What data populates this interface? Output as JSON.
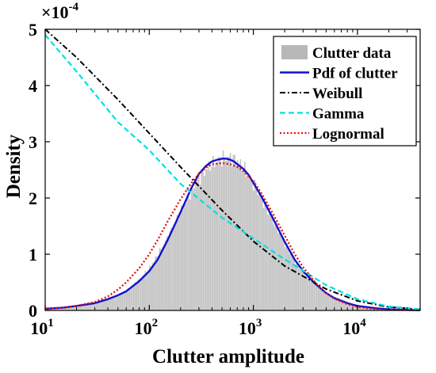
{
  "chart_data": {
    "type": "line",
    "title": "",
    "xlabel": "Clutter amplitude",
    "ylabel": "Density",
    "x_scale": "log",
    "xlim": [
      10,
      40000
    ],
    "ylim": [
      0,
      0.0005
    ],
    "y_multiplier_label": "×10",
    "y_multiplier_exponent": "-4",
    "x_ticks": [
      {
        "value": 10,
        "base": "10",
        "exp": "1"
      },
      {
        "value": 100,
        "base": "10",
        "exp": "2"
      },
      {
        "value": 1000,
        "base": "10",
        "exp": "3"
      },
      {
        "value": 10000,
        "base": "10",
        "exp": "4"
      }
    ],
    "y_ticks": [
      {
        "value": 0,
        "label": "0"
      },
      {
        "value": 0.0001,
        "label": "1"
      },
      {
        "value": 0.0002,
        "label": "2"
      },
      {
        "value": 0.0003,
        "label": "3"
      },
      {
        "value": 0.0004,
        "label": "4"
      },
      {
        "value": 0.0005,
        "label": "5"
      }
    ],
    "grid": false,
    "legend_position": "top-right",
    "histogram": {
      "name": "Clutter data",
      "color": "#b8b8b8",
      "x": [
        10,
        15,
        20,
        30,
        40,
        50,
        60,
        80,
        100,
        120,
        150,
        200,
        250,
        300,
        350,
        400,
        450,
        500,
        550,
        600,
        650,
        700,
        800,
        900,
        1000,
        1200,
        1500,
        2000,
        2500,
        3000,
        4000,
        5000,
        6000,
        8000,
        10000,
        12000,
        15000,
        20000,
        30000,
        40000
      ],
      "y": [
        3e-06,
        5e-06,
        8e-06,
        1.3e-05,
        2e-05,
        2.7e-05,
        3.5e-05,
        5.5e-05,
        7.5e-05,
        9.8e-05,
        0.00013,
        0.000175,
        0.00021,
        0.000235,
        0.00025,
        0.00026,
        0.000265,
        0.00027,
        0.000272,
        0.000272,
        0.00027,
        0.000266,
        0.000255,
        0.00024,
        0.000225,
        0.0002,
        0.000165,
        0.00012,
        8.8e-05,
        6.8e-05,
        4.5e-05,
        3e-05,
        2.2e-05,
        1.3e-05,
        8e-06,
        6e-06,
        4e-06,
        2e-06,
        1e-06,
        5e-07
      ]
    },
    "series": [
      {
        "name": "Pdf of clutter",
        "color": "#1010d0",
        "dash": "solid",
        "x": [
          10,
          15,
          20,
          30,
          40,
          50,
          60,
          80,
          100,
          120,
          150,
          200,
          250,
          300,
          350,
          400,
          450,
          500,
          550,
          600,
          650,
          700,
          800,
          900,
          1000,
          1200,
          1500,
          2000,
          2500,
          3000,
          4000,
          5000,
          6000,
          8000,
          10000,
          15000,
          20000,
          30000,
          40000
        ],
        "y": [
          3e-06,
          5e-06,
          8e-06,
          1.3e-05,
          2e-05,
          2.7e-05,
          3.4e-05,
          5.2e-05,
          7e-05,
          9e-05,
          0.000125,
          0.000175,
          0.000215,
          0.000243,
          0.000257,
          0.000265,
          0.000268,
          0.00027,
          0.00027,
          0.000268,
          0.000265,
          0.00026,
          0.000252,
          0.000241,
          0.000227,
          0.000202,
          0.000168,
          0.000122,
          9e-05,
          7e-05,
          4.6e-05,
          3.1e-05,
          2.2e-05,
          1.3e-05,
          8e-06,
          4e-06,
          2e-06,
          1e-06,
          5e-07
        ]
      },
      {
        "name": "Weibull",
        "color": "#000000",
        "dash": "dashdot",
        "x": [
          10,
          20,
          50,
          100,
          200,
          500,
          1000,
          2000,
          5000,
          10000,
          20000,
          40000
        ],
        "y": [
          0.0005,
          0.00045,
          0.000375,
          0.000315,
          0.000255,
          0.000178,
          0.000123,
          7.9e-05,
          3.8e-05,
          1.7e-05,
          6e-06,
          2e-06
        ]
      },
      {
        "name": "Gamma",
        "color": "#00e0e0",
        "dash": "dashed",
        "x": [
          10,
          20,
          50,
          100,
          200,
          500,
          1000,
          2000,
          5000,
          10000,
          20000,
          40000
        ],
        "y": [
          0.00049,
          0.000425,
          0.000335,
          0.000285,
          0.000225,
          0.000165,
          0.000128,
          9.1e-05,
          4.5e-05,
          2e-05,
          7e-06,
          2e-06
        ]
      },
      {
        "name": "Lognormal",
        "color": "#e01010",
        "dash": "dotted",
        "x": [
          10,
          15,
          20,
          30,
          40,
          50,
          60,
          80,
          100,
          120,
          150,
          200,
          250,
          300,
          350,
          400,
          500,
          600,
          700,
          800,
          1000,
          1200,
          1500,
          2000,
          2500,
          3000,
          4000,
          5000,
          6000,
          8000,
          10000,
          15000,
          20000,
          30000,
          40000
        ],
        "y": [
          3e-06,
          5e-06,
          8e-06,
          1.5e-05,
          2.5e-05,
          3.7e-05,
          5e-05,
          7.5e-05,
          0.0001,
          0.000125,
          0.000158,
          0.000198,
          0.000225,
          0.000243,
          0.000254,
          0.00026,
          0.000262,
          0.00026,
          0.000255,
          0.000248,
          0.00023,
          0.000208,
          0.000176,
          0.000133,
          0.0001,
          7.7e-05,
          4.8e-05,
          3.1e-05,
          2.1e-05,
          1.1e-05,
          6e-06,
          2e-06,
          1e-06,
          5e-07,
          2e-07
        ]
      }
    ]
  }
}
